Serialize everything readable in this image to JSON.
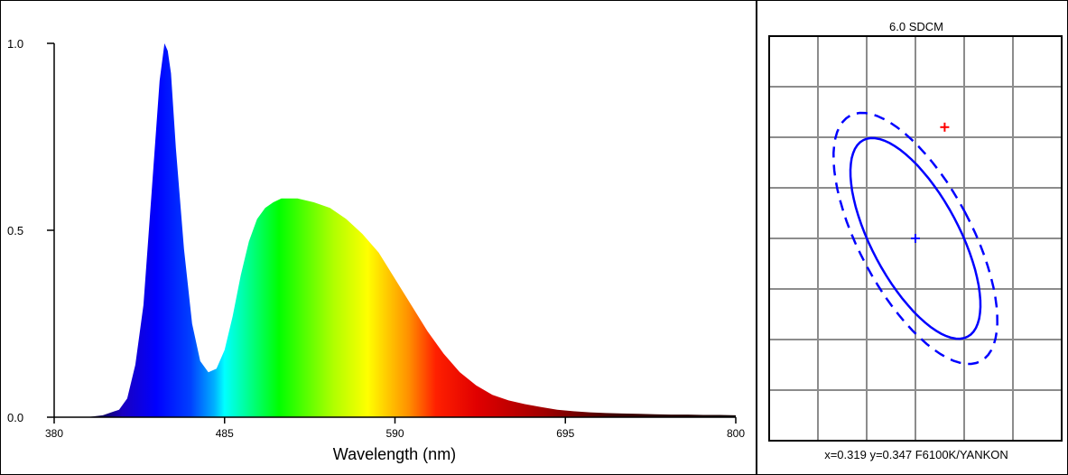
{
  "chart_data": [
    {
      "type": "area",
      "title": "",
      "xlabel": "Wavelength (nm)",
      "ylabel": "",
      "xlim": [
        380,
        800
      ],
      "ylim": [
        0,
        1.0
      ],
      "x_ticks": [
        "380",
        "485",
        "590",
        "695",
        "800"
      ],
      "y_ticks": [
        "0.0",
        "0.5",
        "1.0"
      ],
      "fill": "wavelength-rainbow",
      "grid": false,
      "series": [
        {
          "x": [
            380,
            400,
            410,
            420,
            425,
            430,
            435,
            440,
            445,
            448,
            450,
            452,
            455,
            460,
            465,
            470,
            475,
            480,
            485,
            490,
            495,
            500,
            505,
            510,
            515,
            520,
            530,
            540,
            550,
            560,
            570,
            580,
            590,
            600,
            610,
            620,
            630,
            640,
            650,
            660,
            670,
            680,
            690,
            700,
            710,
            720,
            730,
            740,
            750,
            760,
            770,
            780,
            790,
            800
          ],
          "values": [
            0.0,
            0.0,
            0.005,
            0.02,
            0.05,
            0.14,
            0.3,
            0.6,
            0.9,
            1.0,
            0.98,
            0.92,
            0.72,
            0.45,
            0.25,
            0.15,
            0.12,
            0.13,
            0.18,
            0.27,
            0.38,
            0.47,
            0.53,
            0.56,
            0.575,
            0.585,
            0.585,
            0.575,
            0.56,
            0.53,
            0.49,
            0.44,
            0.37,
            0.3,
            0.23,
            0.17,
            0.12,
            0.085,
            0.06,
            0.045,
            0.035,
            0.027,
            0.02,
            0.016,
            0.013,
            0.011,
            0.01,
            0.009,
            0.008,
            0.007,
            0.007,
            0.006,
            0.006,
            0.005
          ]
        }
      ]
    },
    {
      "type": "scatter",
      "title": "6.0 SDCM",
      "caption": "x=0.319 y=0.347 F6100K/YANKON",
      "grid": true,
      "grid_cols": 6,
      "grid_rows": 8,
      "ellipses": [
        {
          "style": "solid",
          "cx": 3.0,
          "cy": 4.0,
          "rx": 0.9,
          "ry": 2.2,
          "angle_deg": 28
        },
        {
          "style": "dashed",
          "cx": 3.0,
          "cy": 4.0,
          "rx": 1.15,
          "ry": 2.75,
          "angle_deg": 28
        }
      ],
      "points": [
        {
          "name": "target",
          "x": 3.0,
          "y": 4.0,
          "color": "#0000ff"
        },
        {
          "name": "measured",
          "x": 3.6,
          "y": 6.2,
          "color": "#ff0000"
        }
      ]
    }
  ],
  "colors": {
    "frame": "#000000",
    "grid": "#8c8c8c",
    "ellipse": "#0000ff"
  }
}
